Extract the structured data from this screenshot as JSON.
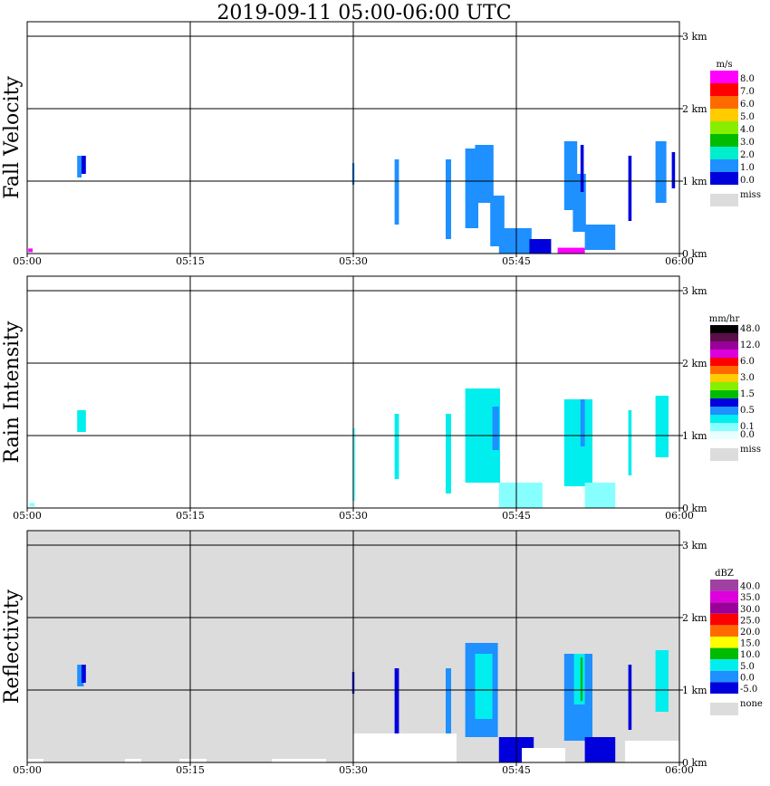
{
  "title": "2019-09-11   05:00-06:00 UTC",
  "time_ticks": [
    "05:00",
    "05:15",
    "05:30",
    "05:45",
    "06:00"
  ],
  "height_ticks": [
    "0 km",
    "1 km",
    "2 km",
    "3 km"
  ],
  "chart_data": [
    {
      "type": "heatmap",
      "name": "fall-velocity",
      "ylabel": "Fall Velocity",
      "x_range_minutes": [
        0,
        60
      ],
      "y_range_km": [
        0,
        3.2
      ],
      "background": "#ffffff",
      "legend_unit": "m/s",
      "legend_miss_label": "miss",
      "legend_miss_color": "#dcdcdc",
      "legend": [
        {
          "label": "8.0",
          "color": "#ff00ff"
        },
        {
          "label": "7.0",
          "color": "#ff0000"
        },
        {
          "label": "6.0",
          "color": "#ff6a00"
        },
        {
          "label": "5.0",
          "color": "#ffcc00"
        },
        {
          "label": "4.0",
          "color": "#88ee00"
        },
        {
          "label": "3.0",
          "color": "#00bb00"
        },
        {
          "label": "2.0",
          "color": "#00eecc"
        },
        {
          "label": "1.0",
          "color": "#1e90ff"
        },
        {
          "label": "0.0",
          "color": "#0000dd"
        }
      ],
      "cells": [
        {
          "t": 4.6,
          "h": 1.05,
          "dt": 0.4,
          "dh": 0.3,
          "c": "#1e90ff"
        },
        {
          "t": 5.0,
          "h": 1.1,
          "dt": 0.4,
          "dh": 0.25,
          "c": "#0000dd"
        },
        {
          "t": 29.9,
          "h": 0.95,
          "dt": 0.2,
          "dh": 0.3,
          "c": "#1e90ff"
        },
        {
          "t": 33.8,
          "h": 0.4,
          "dt": 0.4,
          "dh": 0.9,
          "c": "#1e90ff"
        },
        {
          "t": 38.5,
          "h": 0.2,
          "dt": 0.5,
          "dh": 1.1,
          "c": "#1e90ff"
        },
        {
          "t": 40.3,
          "h": 0.35,
          "dt": 1.2,
          "dh": 1.1,
          "c": "#1e90ff"
        },
        {
          "t": 41.2,
          "h": 0.7,
          "dt": 1.7,
          "dh": 0.8,
          "c": "#1e90ff"
        },
        {
          "t": 42.6,
          "h": 0.1,
          "dt": 1.3,
          "dh": 0.7,
          "c": "#1e90ff"
        },
        {
          "t": 43.4,
          "h": 0.0,
          "dt": 3.0,
          "dh": 0.35,
          "c": "#1e90ff"
        },
        {
          "t": 46.2,
          "h": 0.0,
          "dt": 2.0,
          "dh": 0.2,
          "c": "#0000dd"
        },
        {
          "t": 49.4,
          "h": 0.6,
          "dt": 1.2,
          "dh": 0.95,
          "c": "#1e90ff"
        },
        {
          "t": 50.2,
          "h": 0.3,
          "dt": 1.2,
          "dh": 0.8,
          "c": "#1e90ff"
        },
        {
          "t": 50.9,
          "h": 0.85,
          "dt": 0.3,
          "dh": 0.65,
          "c": "#0000dd"
        },
        {
          "t": 51.3,
          "h": 0.05,
          "dt": 2.8,
          "dh": 0.35,
          "c": "#1e90ff"
        },
        {
          "t": 48.8,
          "h": 0.0,
          "dt": 2.5,
          "dh": 0.08,
          "c": "#ff00ff"
        },
        {
          "t": 55.3,
          "h": 0.45,
          "dt": 0.3,
          "dh": 0.9,
          "c": "#0000dd"
        },
        {
          "t": 57.8,
          "h": 0.7,
          "dt": 1.0,
          "dh": 0.85,
          "c": "#1e90ff"
        },
        {
          "t": 59.3,
          "h": 0.9,
          "dt": 0.3,
          "dh": 0.5,
          "c": "#0000dd"
        },
        {
          "t": 0.1,
          "h": 0.02,
          "dt": 0.4,
          "dh": 0.05,
          "c": "#ff00ff"
        }
      ]
    },
    {
      "type": "heatmap",
      "name": "rain-intensity",
      "ylabel": "Rain Intensity",
      "x_range_minutes": [
        0,
        60
      ],
      "y_range_km": [
        0,
        3.2
      ],
      "background": "#ffffff",
      "legend_unit": "mm/hr",
      "legend_miss_label": "miss",
      "legend_miss_color": "#dcdcdc",
      "legend": [
        {
          "label": "48.0",
          "color": "#000000"
        },
        {
          "label": "",
          "color": "#5a0f4a"
        },
        {
          "label": "12.0",
          "color": "#990099"
        },
        {
          "label": "",
          "color": "#dd00dd"
        },
        {
          "label": "6.0",
          "color": "#ff0000"
        },
        {
          "label": "",
          "color": "#ff6a00"
        },
        {
          "label": "3.0",
          "color": "#ffcc00"
        },
        {
          "label": "",
          "color": "#88ee00"
        },
        {
          "label": "1.5",
          "color": "#00bb00"
        },
        {
          "label": "",
          "color": "#0000dd"
        },
        {
          "label": "0.5",
          "color": "#1e90ff"
        },
        {
          "label": "",
          "color": "#00eeee"
        },
        {
          "label": "0.1",
          "color": "#88ffff"
        },
        {
          "label": "0.0",
          "color": "#e8ffff"
        }
      ],
      "cells": [
        {
          "t": 4.6,
          "h": 1.05,
          "dt": 0.8,
          "dh": 0.3,
          "c": "#00eeee"
        },
        {
          "t": 33.8,
          "h": 0.4,
          "dt": 0.4,
          "dh": 0.9,
          "c": "#00eeee"
        },
        {
          "t": 38.5,
          "h": 0.2,
          "dt": 0.5,
          "dh": 1.1,
          "c": "#00eeee"
        },
        {
          "t": 40.3,
          "h": 0.35,
          "dt": 3.2,
          "dh": 1.3,
          "c": "#00eeee"
        },
        {
          "t": 42.8,
          "h": 0.8,
          "dt": 0.6,
          "dh": 0.6,
          "c": "#1e90ff"
        },
        {
          "t": 43.4,
          "h": 0.0,
          "dt": 4.0,
          "dh": 0.35,
          "c": "#88ffff"
        },
        {
          "t": 49.4,
          "h": 0.3,
          "dt": 2.6,
          "dh": 1.2,
          "c": "#00eeee"
        },
        {
          "t": 50.9,
          "h": 0.85,
          "dt": 0.4,
          "dh": 0.65,
          "c": "#1e90ff"
        },
        {
          "t": 51.3,
          "h": 0.0,
          "dt": 2.8,
          "dh": 0.35,
          "c": "#88ffff"
        },
        {
          "t": 55.3,
          "h": 0.45,
          "dt": 0.3,
          "dh": 0.9,
          "c": "#00eeee"
        },
        {
          "t": 57.8,
          "h": 0.7,
          "dt": 1.2,
          "dh": 0.85,
          "c": "#00eeee"
        },
        {
          "t": 29.9,
          "h": 0.1,
          "dt": 0.3,
          "dh": 1.0,
          "c": "#88ffff"
        },
        {
          "t": 0.2,
          "h": 0.02,
          "dt": 0.5,
          "dh": 0.05,
          "c": "#88ffff"
        }
      ]
    },
    {
      "type": "heatmap",
      "name": "reflectivity",
      "ylabel": "Reflectivity",
      "x_range_minutes": [
        0,
        60
      ],
      "y_range_km": [
        0,
        3.2
      ],
      "background": "#dcdcdc",
      "legend_unit": "dBZ",
      "legend_miss_label": "none",
      "legend_miss_color": "#dcdcdc",
      "legend": [
        {
          "label": "40.0",
          "color": "#a040a0"
        },
        {
          "label": "35.0",
          "color": "#dd00dd"
        },
        {
          "label": "30.0",
          "color": "#990099"
        },
        {
          "label": "25.0",
          "color": "#ff0000"
        },
        {
          "label": "20.0",
          "color": "#ff6a00"
        },
        {
          "label": "15.0",
          "color": "#ffff00"
        },
        {
          "label": "10.0",
          "color": "#00bb00"
        },
        {
          "label": "5.0",
          "color": "#00eeee"
        },
        {
          "label": "0.0",
          "color": "#1e90ff"
        },
        {
          "label": "-5.0",
          "color": "#0000dd"
        }
      ],
      "cells": [
        {
          "t": 4.6,
          "h": 1.05,
          "dt": 0.6,
          "dh": 0.3,
          "c": "#1e90ff"
        },
        {
          "t": 5.0,
          "h": 1.1,
          "dt": 0.4,
          "dh": 0.25,
          "c": "#0000dd"
        },
        {
          "t": 29.9,
          "h": 0.95,
          "dt": 0.2,
          "dh": 0.3,
          "c": "#0000dd"
        },
        {
          "t": 33.8,
          "h": 0.4,
          "dt": 0.4,
          "dh": 0.9,
          "c": "#0000dd"
        },
        {
          "t": 38.5,
          "h": 0.2,
          "dt": 0.5,
          "dh": 1.1,
          "c": "#1e90ff"
        },
        {
          "t": 40.3,
          "h": 0.35,
          "dt": 3.0,
          "dh": 1.3,
          "c": "#1e90ff"
        },
        {
          "t": 41.2,
          "h": 0.6,
          "dt": 1.6,
          "dh": 0.9,
          "c": "#00eeee"
        },
        {
          "t": 43.4,
          "h": 0.0,
          "dt": 3.2,
          "dh": 0.35,
          "c": "#0000dd"
        },
        {
          "t": 49.4,
          "h": 0.3,
          "dt": 2.6,
          "dh": 1.2,
          "c": "#1e90ff"
        },
        {
          "t": 50.3,
          "h": 0.8,
          "dt": 1.0,
          "dh": 0.7,
          "c": "#00eeee"
        },
        {
          "t": 50.9,
          "h": 0.85,
          "dt": 0.2,
          "dh": 0.6,
          "c": "#00bb00"
        },
        {
          "t": 51.3,
          "h": 0.0,
          "dt": 2.8,
          "dh": 0.35,
          "c": "#0000dd"
        },
        {
          "t": 55.3,
          "h": 0.45,
          "dt": 0.3,
          "dh": 0.9,
          "c": "#0000dd"
        },
        {
          "t": 57.8,
          "h": 0.7,
          "dt": 1.2,
          "dh": 0.85,
          "c": "#00eeee"
        },
        {
          "t": 0.0,
          "h": 0.0,
          "dt": 1.5,
          "dh": 0.05,
          "c": "#ffffff"
        },
        {
          "t": 9.0,
          "h": 0.0,
          "dt": 1.5,
          "dh": 0.05,
          "c": "#ffffff"
        },
        {
          "t": 14.0,
          "h": 0.0,
          "dt": 2.5,
          "dh": 0.05,
          "c": "#ffffff"
        },
        {
          "t": 22.5,
          "h": 0.0,
          "dt": 5.0,
          "dh": 0.05,
          "c": "#ffffff"
        },
        {
          "t": 30.0,
          "h": 0.0,
          "dt": 9.5,
          "dh": 0.4,
          "c": "#ffffff"
        },
        {
          "t": 45.5,
          "h": 0.0,
          "dt": 4.0,
          "dh": 0.2,
          "c": "#ffffff"
        },
        {
          "t": 55.0,
          "h": 0.0,
          "dt": 5.0,
          "dh": 0.3,
          "c": "#ffffff"
        }
      ]
    }
  ]
}
